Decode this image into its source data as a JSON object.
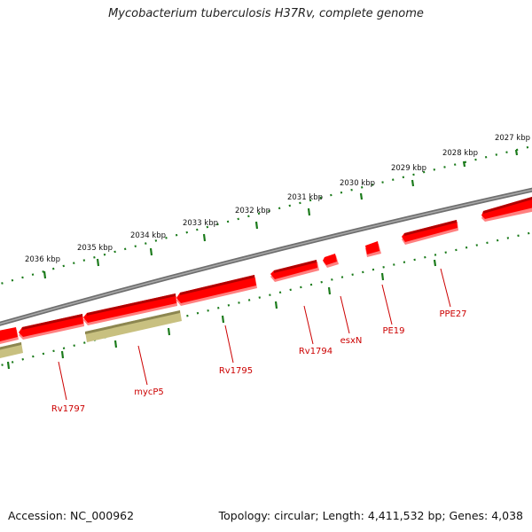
{
  "title": "Mycobacterium tuberculosis H37Rv, complete genome",
  "footer": {
    "accession": "Accession: NC_000962",
    "summary": "Topology: circular; Length: 4,411,532 bp; Genes: 4,038"
  },
  "colors": {
    "backbone": "#808080",
    "gene": "#ff0000",
    "gene_shadow": "#ff8080",
    "gene_top": "#b00000",
    "pseudogene": "#c8c080",
    "pseudogene_top": "#8c8650",
    "ticks": "#1a7a1a",
    "label": "#cc0000"
  },
  "tick_labels": [
    "2027 kbp",
    "2028 kbp",
    "2029 kbp",
    "2030 kbp",
    "2031 kbp",
    "2032 kbp",
    "2033 kbp",
    "2034 kbp",
    "2035 kbp",
    "2036 kbp"
  ],
  "gene_labels": [
    "PPE27",
    "PE19",
    "esxN",
    "Rv1794",
    "Rv1795",
    "mycP5",
    "Rv1797"
  ]
}
